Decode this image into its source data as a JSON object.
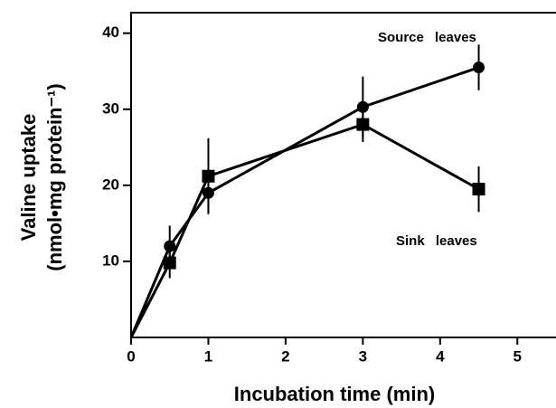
{
  "chart_data": {
    "type": "line",
    "x_label": "Incubation time (min)",
    "y_label": [
      "Valine uptake",
      "(nmol•mg protein⁻¹)"
    ],
    "xlim": [
      0,
      5.5
    ],
    "ylim": [
      0,
      42.7
    ],
    "xticks": [
      0,
      1,
      2,
      3,
      4,
      5
    ],
    "yticks": [
      10,
      20,
      30,
      40
    ],
    "series": [
      {
        "name": "Source leaves",
        "color": "#000",
        "marker": "circle",
        "x": [
          0,
          0.5,
          1,
          3,
          4.5
        ],
        "values": [
          0,
          12,
          19,
          30.3,
          35.5
        ],
        "errors": [
          null,
          2.7,
          2.5,
          4,
          3
        ]
      },
      {
        "name": "Sink leaves",
        "color": "#000",
        "marker": "square",
        "x": [
          0,
          0.5,
          1,
          3,
          4.5
        ],
        "values": [
          0,
          9.8,
          21.2,
          28,
          19.5
        ],
        "errors": [
          null,
          2,
          5,
          2.3,
          3
        ]
      }
    ]
  }
}
